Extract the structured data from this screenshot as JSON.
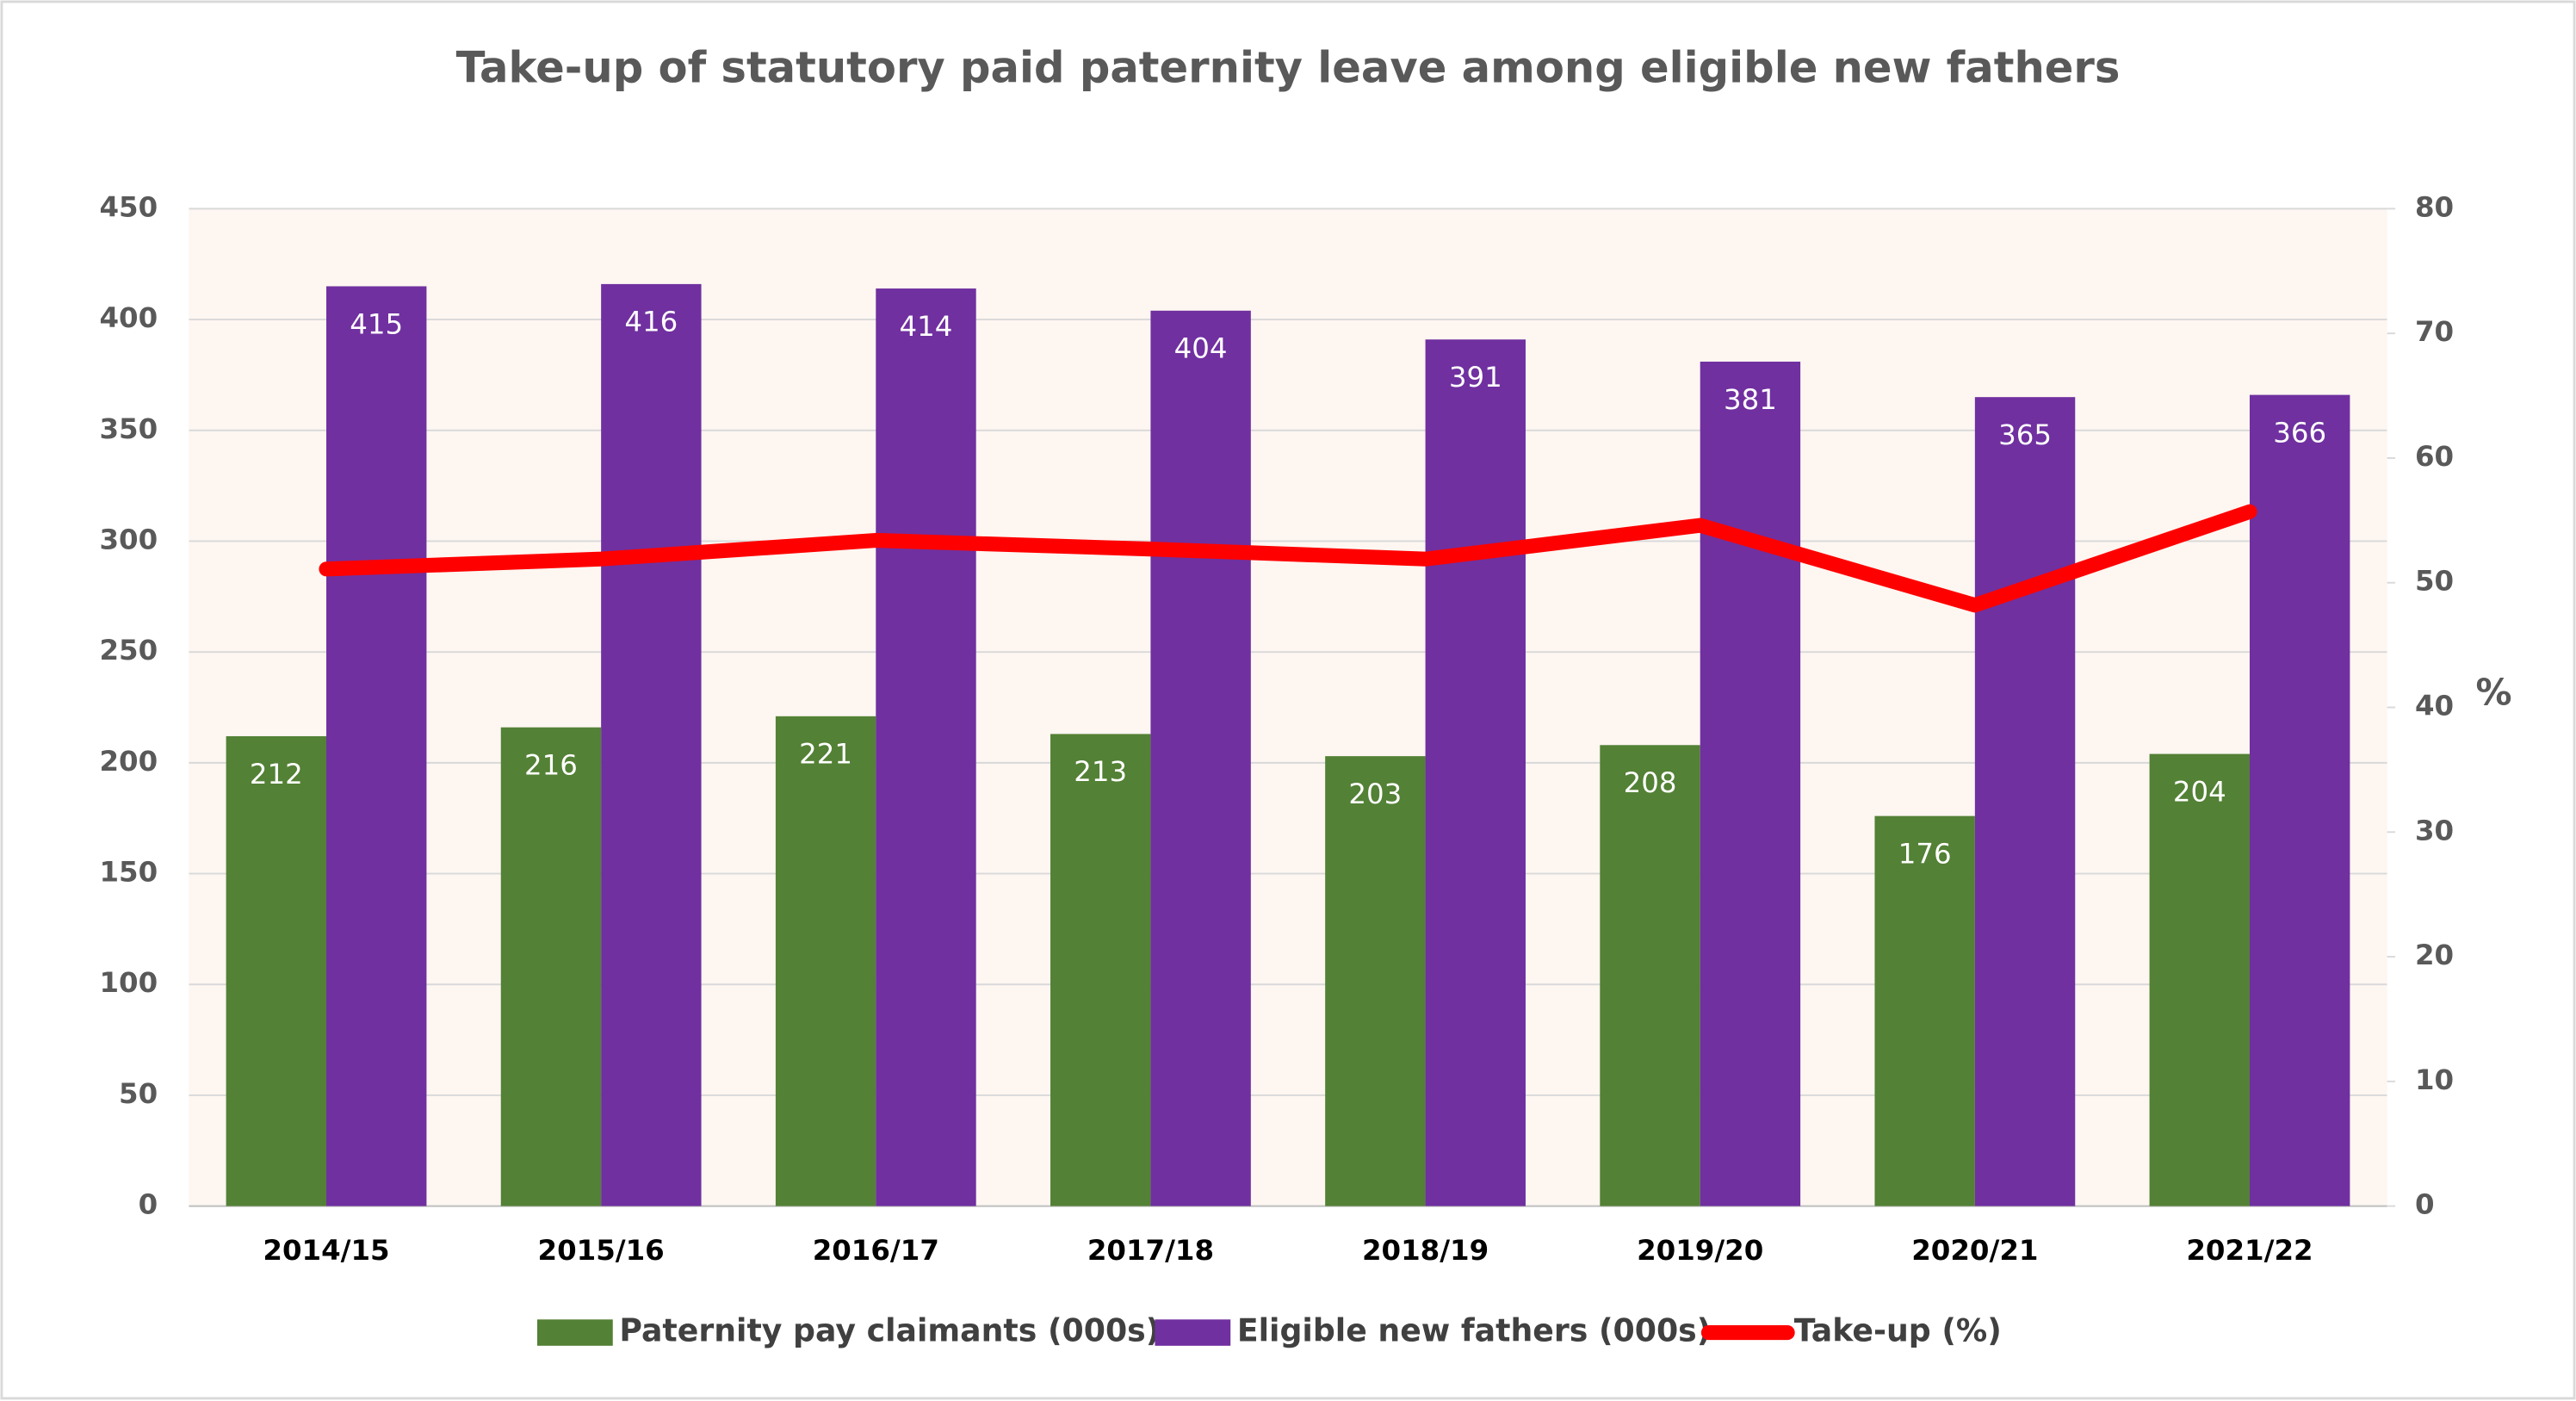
{
  "chart_data": {
    "type": "bar",
    "title": "Take-up of statutory paid paternity leave among eligible new fathers",
    "categories": [
      "2014/15",
      "2015/16",
      "2016/17",
      "2017/18",
      "2018/19",
      "2019/20",
      "2020/21",
      "2021/22"
    ],
    "series": [
      {
        "name": "Paternity pay claimants (000s)",
        "color": "#538135",
        "type": "bar",
        "values": [
          212,
          216,
          221,
          213,
          203,
          208,
          176,
          204
        ]
      },
      {
        "name": "Eligible new fathers (000s)",
        "color": "#7030a0",
        "type": "bar",
        "values": [
          415,
          416,
          414,
          404,
          391,
          381,
          365,
          366
        ]
      },
      {
        "name": "Take-up (%)",
        "color": "#ff0000",
        "type": "line",
        "axis": "y2",
        "values": [
          51.1,
          51.9,
          53.4,
          52.7,
          51.9,
          54.6,
          48.2,
          55.7
        ]
      }
    ],
    "ylim": [
      0,
      450
    ],
    "yticks": [
      0,
      50,
      100,
      150,
      200,
      250,
      300,
      350,
      400,
      450
    ],
    "y2lim": [
      0,
      80
    ],
    "y2ticks": [
      0,
      10,
      20,
      30,
      40,
      50,
      60,
      70,
      80
    ],
    "y2label": "%",
    "grid": true,
    "legend": "bottom"
  }
}
